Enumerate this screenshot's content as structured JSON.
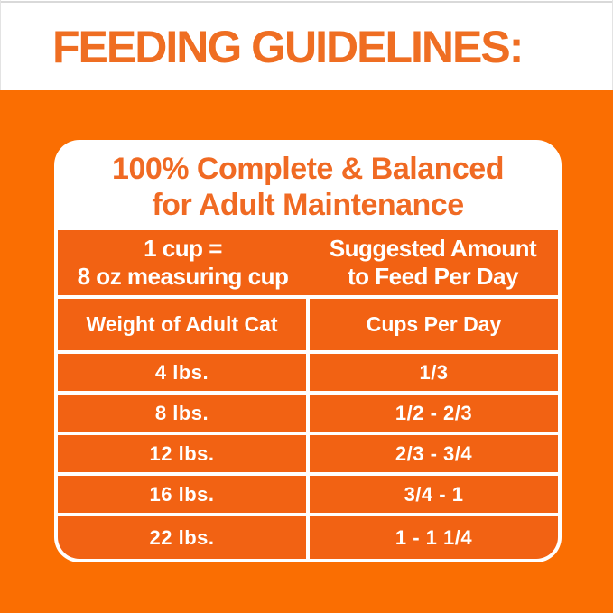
{
  "page": {
    "headline": "FEEDING GUIDELINES:"
  },
  "colors": {
    "background_orange": "#FA6E02",
    "cell_orange": "#F26213",
    "headline_orange": "#EF6E22",
    "card_text_orange": "#F06A23",
    "card_white": "#FFFFFF",
    "hairline_gray": "#D9D9D9"
  },
  "card": {
    "title_line1": "100% Complete & Balanced",
    "title_line2": "for Adult Maintenance",
    "measure_note": {
      "line1": "1 cup =",
      "line2": "8 oz measuring cup"
    },
    "suggested": {
      "line1": "Suggested Amount",
      "line2": "to Feed Per Day"
    },
    "columns": {
      "weight": "Weight of Adult Cat",
      "cups": "Cups Per Day"
    },
    "rows": [
      {
        "weight": "4 lbs.",
        "cups": "1/3"
      },
      {
        "weight": "8 lbs.",
        "cups": "1/2 - 2/3"
      },
      {
        "weight": "12 lbs.",
        "cups": "2/3 - 3/4"
      },
      {
        "weight": "16 lbs.",
        "cups": "3/4 - 1"
      },
      {
        "weight": "22 lbs.",
        "cups": "1 - 1 1/4"
      }
    ]
  },
  "chart_data": {
    "type": "table",
    "title": "FEEDING GUIDELINES: 100% Complete & Balanced for Adult Maintenance",
    "note": "1 cup = 8 oz measuring cup",
    "value_header": "Suggested Amount to Feed Per Day",
    "columns": [
      "Weight of Adult Cat",
      "Cups Per Day"
    ],
    "rows": [
      [
        "4 lbs.",
        "1/3"
      ],
      [
        "8 lbs.",
        "1/2 - 2/3"
      ],
      [
        "12 lbs.",
        "2/3 - 3/4"
      ],
      [
        "16 lbs.",
        "3/4 - 1"
      ],
      [
        "22 lbs.",
        "1 - 1 1/4"
      ]
    ]
  }
}
